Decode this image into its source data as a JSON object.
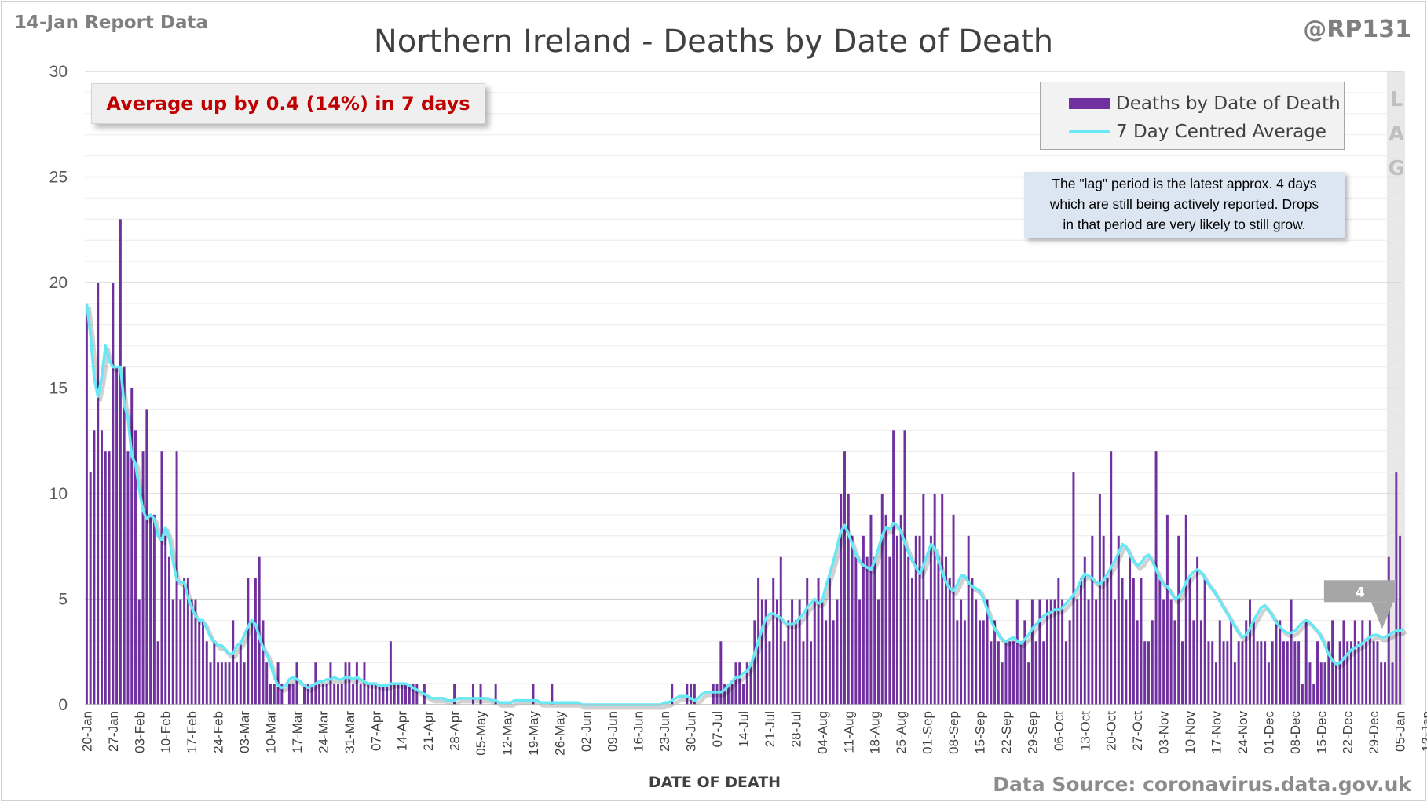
{
  "header": {
    "report_date": "14-Jan Report Data",
    "handle": "@RP131",
    "title": "Northern Ireland - Deaths by Date of Death"
  },
  "callout": {
    "text": "Average up by 0.4 (14%) in 7 days",
    "color": "#c00000"
  },
  "legend": {
    "bars_label": "Deaths by Date of Death",
    "line_label": "7 Day Centred Average"
  },
  "lag_note": {
    "line1": "The \"lag\" period is the latest approx. 4 days",
    "line2": "which are still being actively reported. Drops",
    "line3": "in that period are very likely to still grow."
  },
  "lag_letters": [
    "L",
    "A",
    "G"
  ],
  "lag_marker_value": "4",
  "footer": {
    "xlabel": "DATE OF DEATH",
    "source": "Data Source: coronavirus.data.gov.uk"
  },
  "colors": {
    "bar": "#7030a0",
    "bar_light": "#b592d2",
    "line": "#66e8f5",
    "grid": "#d9d9d9",
    "lag_band": "#e8e8e8",
    "text": "#595959"
  },
  "chart_data": {
    "type": "bar",
    "x_start": "2020-01-20",
    "x_end": "2021-01-13",
    "xlabel": "DATE OF DEATH",
    "ylabel": "",
    "ylim": [
      0,
      30
    ],
    "yticks": [
      0,
      5,
      10,
      15,
      20,
      25,
      30
    ],
    "xticks": [
      "20-Jan",
      "27-Jan",
      "03-Feb",
      "10-Feb",
      "17-Feb",
      "24-Feb",
      "03-Mar",
      "10-Mar",
      "17-Mar",
      "24-Mar",
      "31-Mar",
      "07-Apr",
      "14-Apr",
      "21-Apr",
      "28-Apr",
      "05-May",
      "12-May",
      "19-May",
      "26-May",
      "02-Jun",
      "09-Jun",
      "16-Jun",
      "23-Jun",
      "30-Jun",
      "07-Jul",
      "14-Jul",
      "21-Jul",
      "28-Jul",
      "04-Aug",
      "11-Aug",
      "18-Aug",
      "25-Aug",
      "01-Sep",
      "08-Sep",
      "15-Sep",
      "22-Sep",
      "29-Sep",
      "06-Oct",
      "13-Oct",
      "20-Oct",
      "27-Oct",
      "03-Nov",
      "10-Nov",
      "17-Nov",
      "24-Nov",
      "01-Dec",
      "08-Dec",
      "15-Dec",
      "22-Dec",
      "29-Dec",
      "05-Jan",
      "12-Jan"
    ],
    "series": [
      {
        "name": "Deaths by Date of Death",
        "values": [
          19,
          11,
          13,
          20,
          13,
          12,
          12,
          20,
          16,
          23,
          16,
          12,
          15,
          13,
          5,
          12,
          14,
          9,
          9,
          3,
          12,
          8,
          7,
          5,
          12,
          5,
          6,
          6,
          5,
          5,
          4,
          4,
          3,
          2,
          3,
          2,
          2,
          2,
          2,
          4,
          2,
          3,
          2,
          6,
          4,
          6,
          7,
          4,
          2,
          1,
          1,
          2,
          1,
          0,
          1,
          1,
          2,
          0,
          1,
          1,
          1,
          2,
          1,
          1,
          1,
          2,
          1,
          1,
          1,
          2,
          2,
          1,
          2,
          1,
          2,
          1,
          1,
          1,
          1,
          1,
          1,
          3,
          1,
          1,
          1,
          1,
          1,
          1,
          1,
          0,
          1,
          0,
          0,
          0,
          0,
          0,
          0,
          0,
          1,
          0,
          0,
          0,
          0,
          1,
          0,
          1,
          0,
          0,
          0,
          1,
          0,
          0,
          0,
          0,
          0,
          0,
          0,
          0,
          0,
          1,
          0,
          0,
          0,
          0,
          1,
          0,
          0,
          0,
          0,
          0,
          0,
          0,
          0,
          0,
          0,
          0,
          0,
          0,
          0,
          0,
          0,
          0,
          0,
          0,
          0,
          0,
          0,
          0,
          0,
          0,
          0,
          0,
          0,
          0,
          0,
          0,
          1,
          0,
          0,
          0,
          1,
          1,
          1,
          0,
          0,
          0,
          0,
          1,
          1,
          3,
          1,
          1,
          1,
          2,
          2,
          1,
          2,
          2,
          4,
          6,
          5,
          5,
          3,
          6,
          5,
          7,
          3,
          4,
          5,
          4,
          5,
          3,
          6,
          3,
          5,
          6,
          5,
          4,
          6,
          4,
          5,
          10,
          12,
          10,
          8,
          7,
          5,
          8,
          7,
          9,
          7,
          5,
          10,
          9,
          7,
          13,
          8,
          9,
          13,
          7,
          6,
          8,
          8,
          10,
          5,
          8,
          10,
          7,
          10,
          7,
          6,
          9,
          4,
          5,
          4,
          8,
          6,
          5,
          4,
          4,
          5,
          3,
          4,
          3,
          2,
          3,
          3,
          3,
          5,
          3,
          4,
          2,
          5,
          3,
          5,
          3,
          5,
          5,
          5,
          6,
          5,
          3,
          4,
          11,
          5,
          6,
          7,
          5,
          8,
          5,
          10,
          8,
          6,
          12,
          5,
          8,
          6,
          5,
          7,
          6,
          4,
          6,
          3,
          3,
          4,
          12,
          6,
          5,
          9,
          5,
          4,
          8,
          3,
          9,
          6,
          4,
          7,
          4,
          6,
          3,
          3,
          2,
          4,
          3,
          3,
          4,
          2,
          3,
          3,
          4,
          5,
          4,
          3,
          3,
          3,
          2,
          3,
          4,
          4,
          3,
          3,
          5,
          3,
          3,
          1,
          4,
          2,
          1,
          3,
          2,
          2,
          3,
          4,
          2,
          3,
          4,
          3,
          3,
          4,
          3,
          4,
          3,
          4,
          3,
          3,
          2,
          2,
          7,
          2,
          11,
          8
        ]
      },
      {
        "name": "7 Day Centred Average",
        "values": [
          19,
          17.5,
          15.5,
          14.6,
          15.5,
          17,
          16.3,
          16,
          16,
          16,
          14.2,
          13.6,
          11.8,
          11.4,
          10.2,
          9.2,
          8.8,
          9,
          8.8,
          8,
          7.8,
          8.4,
          7.9,
          6.8,
          5.9,
          5.8,
          5.8,
          5.1,
          4.6,
          4.2,
          4,
          4,
          3.6,
          3.2,
          3,
          2.8,
          2.8,
          2.6,
          2.4,
          2.4,
          2.8,
          2.9,
          3.3,
          3.7,
          4,
          3.8,
          3.2,
          2.7,
          2.4,
          1.9,
          1.3,
          0.9,
          0.8,
          0.9,
          1.2,
          1.3,
          1.2,
          1.1,
          0.9,
          0.8,
          0.9,
          1,
          1.1,
          1.1,
          1.2,
          1.2,
          1.3,
          1.2,
          1.2,
          1.3,
          1.3,
          1.2,
          1.3,
          1.2,
          1.1,
          1,
          1,
          1,
          0.9,
          0.9,
          0.9,
          1,
          1,
          1,
          1,
          1,
          0.9,
          0.8,
          0.7,
          0.6,
          0.5,
          0.4,
          0.3,
          0.3,
          0.3,
          0.3,
          0.2,
          0.2,
          0.2,
          0.3,
          0.3,
          0.3,
          0.3,
          0.3,
          0.3,
          0.3,
          0.3,
          0.3,
          0.2,
          0.2,
          0.1,
          0.1,
          0.1,
          0.1,
          0.2,
          0.2,
          0.2,
          0.2,
          0.2,
          0.2,
          0.2,
          0.1,
          0.1,
          0.1,
          0.1,
          0.1,
          0.1,
          0.1,
          0.1,
          0.1,
          0.1,
          0.1,
          0,
          0,
          0,
          0,
          0,
          0,
          0,
          0,
          0,
          0,
          0,
          0,
          0,
          0,
          0,
          0,
          0,
          0,
          0,
          0,
          0,
          0,
          0.1,
          0.1,
          0.2,
          0.3,
          0.4,
          0.4,
          0.4,
          0.3,
          0.2,
          0.3,
          0.5,
          0.6,
          0.6,
          0.6,
          0.6,
          0.6,
          0.7,
          0.9,
          1.1,
          1.3,
          1.3,
          1.5,
          1.6,
          1.9,
          2.4,
          3,
          3.6,
          4.1,
          4.3,
          4.3,
          4.2,
          4.1,
          3.9,
          3.8,
          3.8,
          3.9,
          4.1,
          4.3,
          4.6,
          4.8,
          5,
          4.8,
          4.9,
          5.6,
          6.2,
          6.8,
          7.5,
          8.2,
          8.5,
          8.1,
          7.6,
          7.1,
          6.8,
          6.6,
          6.5,
          6.4,
          6.8,
          7.4,
          8,
          8.4,
          8.3,
          8.6,
          8.5,
          8.2,
          7.7,
          7.2,
          6.8,
          6.5,
          6.2,
          6.6,
          7.1,
          7.6,
          7.4,
          6.8,
          6.3,
          5.8,
          5.5,
          5.4,
          5.7,
          6.1,
          6.1,
          5.8,
          5.6,
          5.5,
          5.4,
          5,
          4.5,
          4,
          3.6,
          3.3,
          3.1,
          3,
          3.1,
          3.2,
          3,
          2.9,
          3.1,
          3.3,
          3.6,
          3.8,
          4,
          4.2,
          4.3,
          4.4,
          4.5,
          4.5,
          4.6,
          4.8,
          5,
          5.2,
          5.5,
          5.9,
          6.2,
          6.1,
          6,
          5.8,
          5.7,
          5.9,
          6.2,
          6.5,
          6.8,
          7.2,
          7.6,
          7.5,
          7.1,
          6.8,
          6.6,
          6.7,
          7,
          7.1,
          6.8,
          6.4,
          6,
          5.7,
          5.6,
          5.3,
          5,
          5.1,
          5.4,
          5.8,
          6.1,
          6.3,
          6.4,
          6.3,
          6,
          5.7,
          5.5,
          5.2,
          4.9,
          4.6,
          4.3,
          4,
          3.7,
          3.4,
          3.2,
          3.3,
          3.6,
          4,
          4.3,
          4.6,
          4.7,
          4.5,
          4.2,
          3.9,
          3.7,
          3.5,
          3.4,
          3.4,
          3.5,
          3.7,
          3.9,
          4,
          3.9,
          3.7,
          3.5,
          3.2,
          2.8,
          2.4,
          2.1,
          1.9,
          2,
          2.2,
          2.4,
          2.6,
          2.7,
          2.8,
          2.9,
          3.1,
          3.2,
          3.3,
          3.3,
          3.2,
          3.2,
          3.3,
          3.4,
          3.5,
          3.5,
          3.6
        ]
      }
    ],
    "grid": true,
    "legend_position": "top-right",
    "lag_days": 4
  }
}
